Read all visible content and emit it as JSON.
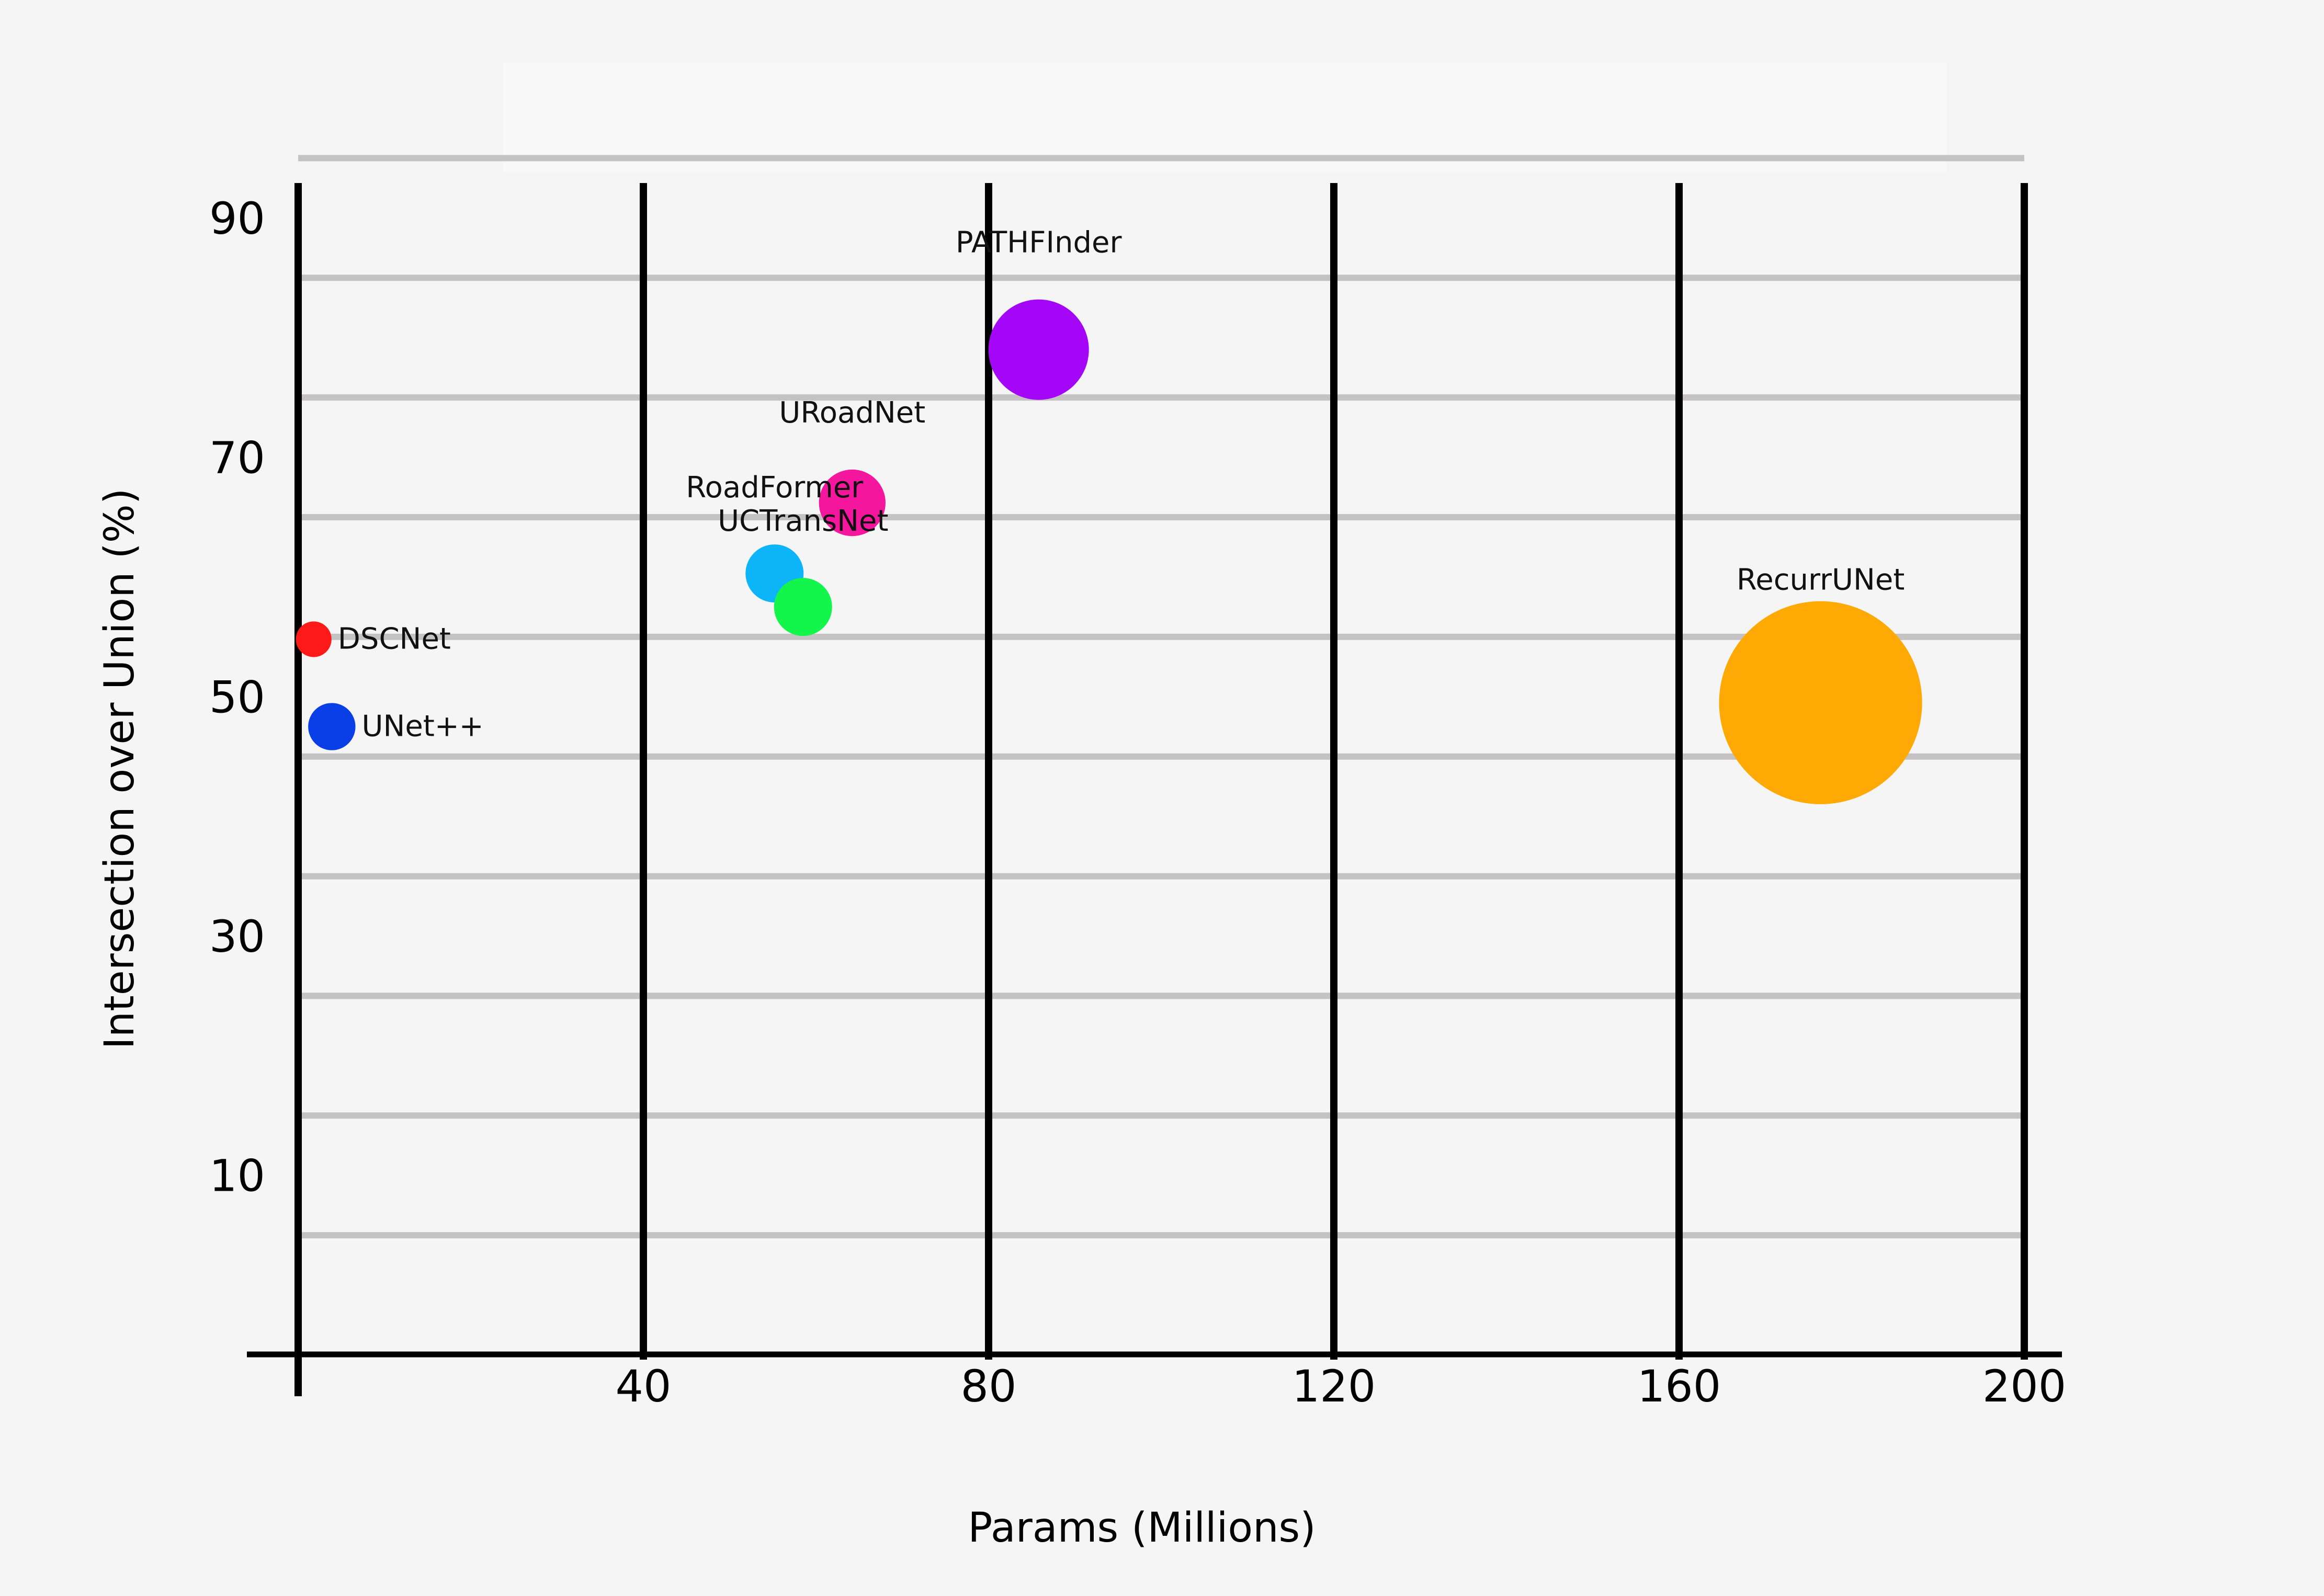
{
  "chart_data": {
    "type": "scatter",
    "subtype": "bubble",
    "title": "",
    "xlabel": "Params (Millions)",
    "ylabel": "Intersection over Union (%)",
    "xlim": [
      0,
      200
    ],
    "ylim": [
      -5,
      100
    ],
    "x_ticks": [
      40,
      80,
      120,
      160,
      200
    ],
    "y_ticks": [
      10,
      30,
      50,
      70,
      90
    ],
    "grid": true,
    "legend": "none",
    "points": [
      {
        "label": "DSCNet",
        "x": 1.8,
        "y": 54.8,
        "color": "#ff1a1a",
        "size": 2
      },
      {
        "label": "UNet++",
        "x": 3.9,
        "y": 47.5,
        "color": "#0a3fe8",
        "size": 5
      },
      {
        "label": "RoadFormer",
        "x": 55.2,
        "y": 60.3,
        "color": "#0db4f7",
        "size": 9
      },
      {
        "label": "UCTransNet",
        "x": 58.5,
        "y": 57.5,
        "color": "#14f54c",
        "size": 9
      },
      {
        "label": "URoadNet",
        "x": 64.2,
        "y": 66.2,
        "color": "#f5169e",
        "size": 13
      },
      {
        "label": "PATHFInder",
        "x": 85.8,
        "y": 79.0,
        "color": "#a406f7",
        "size": 36
      },
      {
        "label": "RecurrUNet",
        "x": 176.4,
        "y": 49.5,
        "color": "#ffa904",
        "size": 176
      }
    ]
  }
}
